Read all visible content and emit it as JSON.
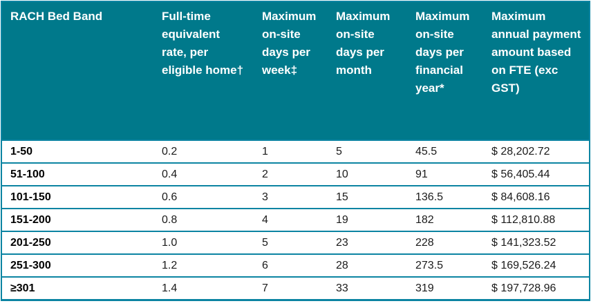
{
  "table": {
    "headers": [
      "RACH Bed Band",
      "Full-time equivalent rate, per eligible home†",
      "Maximum on-site days per week‡",
      "Maximum on-site days per month",
      "Maximum on-site days per financial year*",
      "Maximum annual payment amount based on FTE (exc GST)"
    ],
    "rows": [
      [
        "1-50",
        "0.2",
        "1",
        "5",
        "45.5",
        "$ 28,202.72"
      ],
      [
        "51-100",
        "0.4",
        "2",
        "10",
        "91",
        "$ 56,405.44"
      ],
      [
        "101-150",
        "0.6",
        "3",
        "15",
        "136.5",
        "$ 84,608.16"
      ],
      [
        "151-200",
        "0.8",
        "4",
        "19",
        "182",
        "$ 112,810.88"
      ],
      [
        "201-250",
        "1.0",
        "5",
        "23",
        "228",
        "$ 141,323.52"
      ],
      [
        "251-300",
        "1.2",
        "6",
        "28",
        "273.5",
        "$ 169,526.24"
      ],
      [
        "≥301",
        "1.4",
        "7",
        "33",
        "319",
        "$ 197,728.96"
      ]
    ],
    "colors": {
      "header_bg": "#00798b",
      "border": "#0b84a2",
      "header_text": "#ffffff",
      "body_text": "#1a1a1a"
    }
  }
}
